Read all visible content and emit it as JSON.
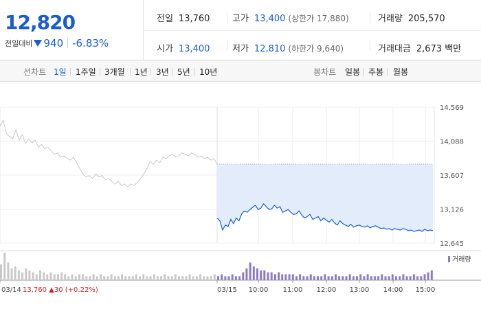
{
  "header": {
    "current_price": "12,820",
    "change_label": "전일대비",
    "change_amount": "940",
    "change_percent": "-6.83%",
    "stats": {
      "prev_close_label": "전일",
      "prev_close": "13,760",
      "high_label": "고가",
      "high": "13,400",
      "upper_limit": "(상한가 17,880)",
      "volume_label": "거래량",
      "volume": "205,570",
      "open_label": "시가",
      "open": "13,400",
      "low_label": "저가",
      "low": "12,810",
      "lower_limit": "(하한가 9,640)",
      "amount_label": "거래대금",
      "amount": "2,673 백만"
    }
  },
  "tabs": {
    "line_label": "선차트",
    "line_tabs": [
      "1일",
      "1주일",
      "3개월",
      "1년",
      "3년",
      "5년",
      "10년"
    ],
    "candle_label": "봉차트",
    "candle_tabs": [
      "일봉",
      "주봉",
      "월봉"
    ]
  },
  "colors": {
    "accent_blue": "#1a5bd2",
    "up_red": "#d62222",
    "prev_day_line": "#c8c8c8",
    "fill": "#e3ecfb",
    "volume_bar": "#8d7bc6"
  },
  "chart_data": {
    "type": "line",
    "ylim": [
      12645,
      14569
    ],
    "y_ticks": [
      "14,569",
      "14,088",
      "13,607",
      "13,126",
      "12,645"
    ],
    "x_ticks": [
      "03/14",
      "03/15",
      "10:00",
      "11:00",
      "12:00",
      "13:00",
      "14:00",
      "15:00"
    ],
    "prev_day_info": {
      "date": "03/14",
      "price": "13,760",
      "change": "30",
      "change_pct": "(+0.22%)"
    },
    "reference_price": 13760,
    "series": [
      {
        "values": [
          14300,
          14380,
          14200,
          14150,
          14120,
          14250,
          14100,
          14180,
          14050,
          14120,
          14060,
          14100,
          14000,
          14040,
          13980,
          14000,
          13950,
          13900,
          13920,
          13860,
          13880,
          13840,
          13820,
          13860,
          13780,
          13700,
          13620,
          13580,
          13600,
          13560,
          13620,
          13580,
          13600,
          13540,
          13560,
          13520,
          13480,
          13520,
          13460,
          13480,
          13440,
          13480,
          13460,
          13500,
          13560,
          13620,
          13700,
          13800,
          13760,
          13820,
          13780,
          13860,
          13840,
          13880,
          13900,
          13860,
          13880,
          13920,
          13900,
          13880,
          13920,
          13900,
          13860,
          13880,
          13840,
          13860,
          13820,
          13840,
          13760
        ]
      },
      {
        "values": [
          13000,
          12960,
          12830,
          12900,
          12880,
          12980,
          12920,
          13000,
          12960,
          13060,
          13100,
          13080,
          13120,
          13150,
          13180,
          13120,
          13140,
          13200,
          13160,
          13120,
          13130,
          13180,
          13140,
          13160,
          13080,
          13100,
          13120,
          13080,
          13050,
          13060,
          13100,
          13040,
          13000,
          13020,
          13050,
          12980,
          13000,
          13020,
          12960,
          13000,
          12970,
          12940,
          12980,
          12930,
          12900,
          12960,
          12920,
          12900,
          12880,
          12910,
          12870,
          12890,
          12900,
          12880,
          12870,
          12890,
          12860,
          12880,
          12890,
          12870,
          12850,
          12860,
          12840,
          12850,
          12830,
          12850,
          12840,
          12830,
          12850,
          12840,
          12820,
          12830,
          12810,
          12820,
          12830,
          12810,
          12840,
          12820,
          12830,
          12820
        ]
      }
    ],
    "legend": "거래량",
    "volume": [
      8,
      14,
      9,
      6,
      7,
      5,
      4,
      6,
      5,
      4,
      3,
      5,
      4,
      3,
      4,
      3,
      3,
      4,
      3,
      2,
      3,
      2,
      3,
      3,
      2,
      2,
      3,
      2,
      3,
      2,
      2,
      3,
      2,
      2,
      3,
      2,
      2,
      2,
      3,
      2,
      3,
      2,
      2,
      3,
      2,
      2,
      3,
      2,
      2,
      3,
      2,
      2,
      2,
      3,
      2,
      2,
      3,
      2,
      2,
      2,
      3,
      2,
      3,
      2,
      2,
      3,
      2,
      2,
      4,
      6,
      9,
      7,
      6,
      5,
      5,
      4,
      4,
      3,
      4,
      3,
      3,
      3,
      3,
      2,
      3,
      2,
      2,
      3,
      2,
      2,
      2,
      3,
      2,
      2,
      3,
      2,
      2,
      2,
      3,
      2,
      2,
      3,
      2,
      3,
      2,
      2,
      2,
      3,
      2,
      2,
      3,
      2,
      2,
      3,
      2,
      2,
      3,
      2,
      2,
      3,
      4,
      5
    ]
  }
}
